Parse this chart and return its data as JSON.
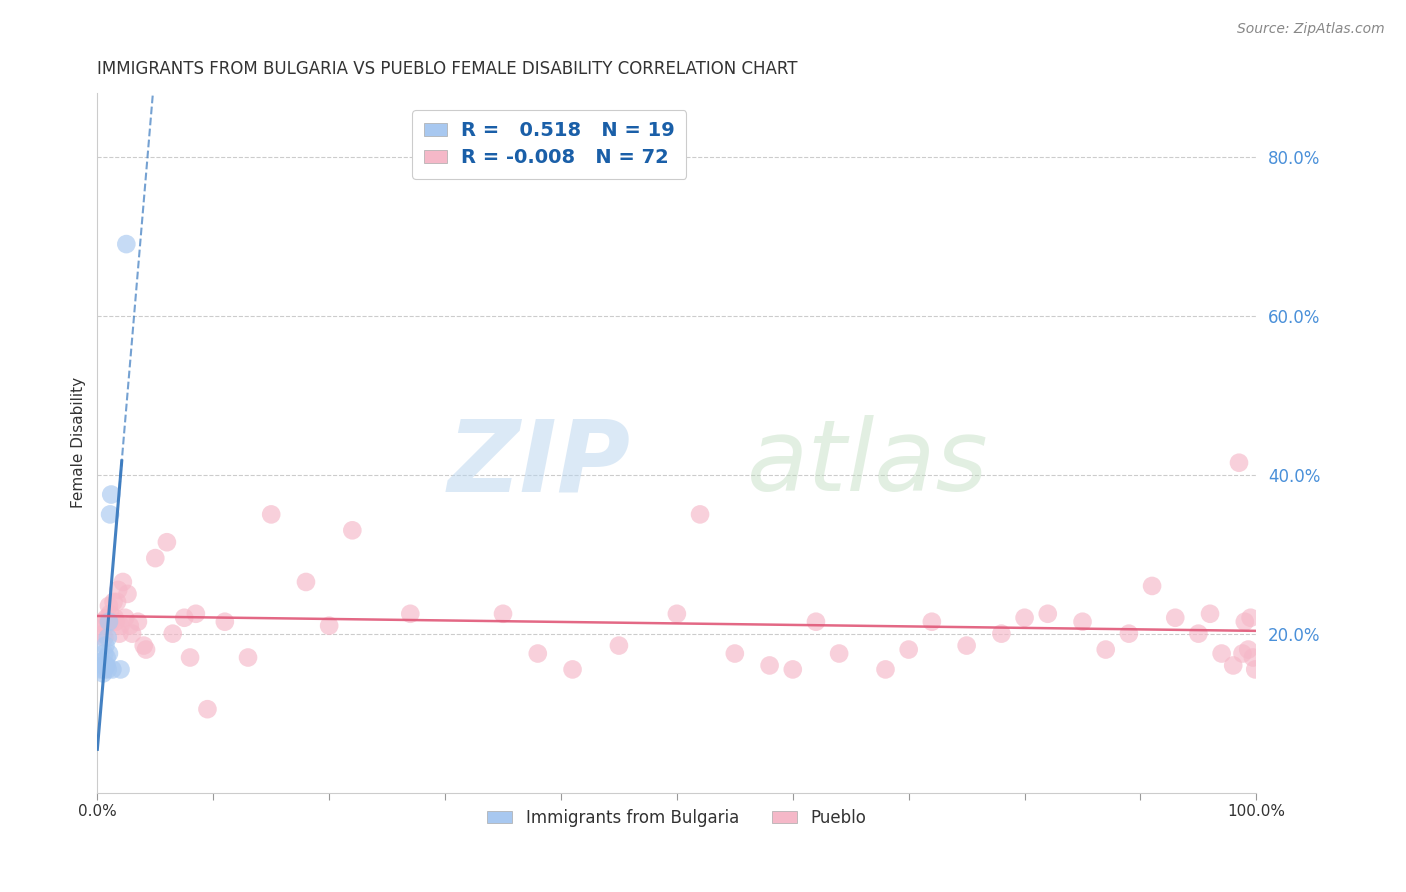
{
  "title": "IMMIGRANTS FROM BULGARIA VS PUEBLO FEMALE DISABILITY CORRELATION CHART",
  "source": "Source: ZipAtlas.com",
  "ylabel": "Female Disability",
  "xlim": [
    0.0,
    1.0
  ],
  "ylim": [
    0.0,
    0.88
  ],
  "xticks": [
    0.0,
    0.1,
    0.2,
    0.3,
    0.4,
    0.5,
    0.6,
    0.7,
    0.8,
    0.9,
    1.0
  ],
  "xticklabels": [
    "0.0%",
    "",
    "",
    "",
    "",
    "",
    "",
    "",
    "",
    "",
    "100.0%"
  ],
  "yticks_right": [
    0.2,
    0.4,
    0.6,
    0.8
  ],
  "ytick_right_labels": [
    "20.0%",
    "40.0%",
    "60.0%",
    "80.0%"
  ],
  "grid_color": "#cccccc",
  "bg_color": "#ffffff",
  "blue_scatter_color": "#a8c8f0",
  "pink_scatter_color": "#f5b8c8",
  "blue_line_color": "#3a7abf",
  "pink_line_color": "#e05878",
  "legend_R_blue": "0.518",
  "legend_N_blue": "19",
  "legend_R_pink": "-0.008",
  "legend_N_pink": "72",
  "blue_points_x": [
    0.003,
    0.004,
    0.005,
    0.005,
    0.006,
    0.006,
    0.007,
    0.007,
    0.008,
    0.008,
    0.009,
    0.009,
    0.01,
    0.01,
    0.011,
    0.012,
    0.013,
    0.02,
    0.025
  ],
  "blue_points_y": [
    0.155,
    0.165,
    0.15,
    0.16,
    0.155,
    0.175,
    0.16,
    0.185,
    0.16,
    0.17,
    0.155,
    0.195,
    0.175,
    0.215,
    0.35,
    0.375,
    0.155,
    0.155,
    0.69
  ],
  "pink_points_x": [
    0.004,
    0.005,
    0.006,
    0.007,
    0.008,
    0.009,
    0.01,
    0.011,
    0.012,
    0.014,
    0.015,
    0.016,
    0.017,
    0.018,
    0.019,
    0.02,
    0.022,
    0.024,
    0.026,
    0.028,
    0.03,
    0.035,
    0.04,
    0.042,
    0.05,
    0.06,
    0.065,
    0.075,
    0.08,
    0.085,
    0.095,
    0.11,
    0.13,
    0.15,
    0.18,
    0.2,
    0.22,
    0.27,
    0.35,
    0.38,
    0.41,
    0.45,
    0.5,
    0.52,
    0.55,
    0.58,
    0.6,
    0.62,
    0.64,
    0.68,
    0.7,
    0.72,
    0.75,
    0.78,
    0.8,
    0.82,
    0.85,
    0.87,
    0.89,
    0.91,
    0.93,
    0.95,
    0.96,
    0.97,
    0.98,
    0.985,
    0.988,
    0.99,
    0.993,
    0.995,
    0.997,
    0.999
  ],
  "pink_points_y": [
    0.215,
    0.2,
    0.195,
    0.21,
    0.22,
    0.215,
    0.235,
    0.225,
    0.215,
    0.24,
    0.22,
    0.215,
    0.24,
    0.255,
    0.2,
    0.21,
    0.265,
    0.22,
    0.25,
    0.21,
    0.2,
    0.215,
    0.185,
    0.18,
    0.295,
    0.315,
    0.2,
    0.22,
    0.17,
    0.225,
    0.105,
    0.215,
    0.17,
    0.35,
    0.265,
    0.21,
    0.33,
    0.225,
    0.225,
    0.175,
    0.155,
    0.185,
    0.225,
    0.35,
    0.175,
    0.16,
    0.155,
    0.215,
    0.175,
    0.155,
    0.18,
    0.215,
    0.185,
    0.2,
    0.22,
    0.225,
    0.215,
    0.18,
    0.2,
    0.26,
    0.22,
    0.2,
    0.225,
    0.175,
    0.16,
    0.415,
    0.175,
    0.215,
    0.18,
    0.22,
    0.17,
    0.155
  ]
}
